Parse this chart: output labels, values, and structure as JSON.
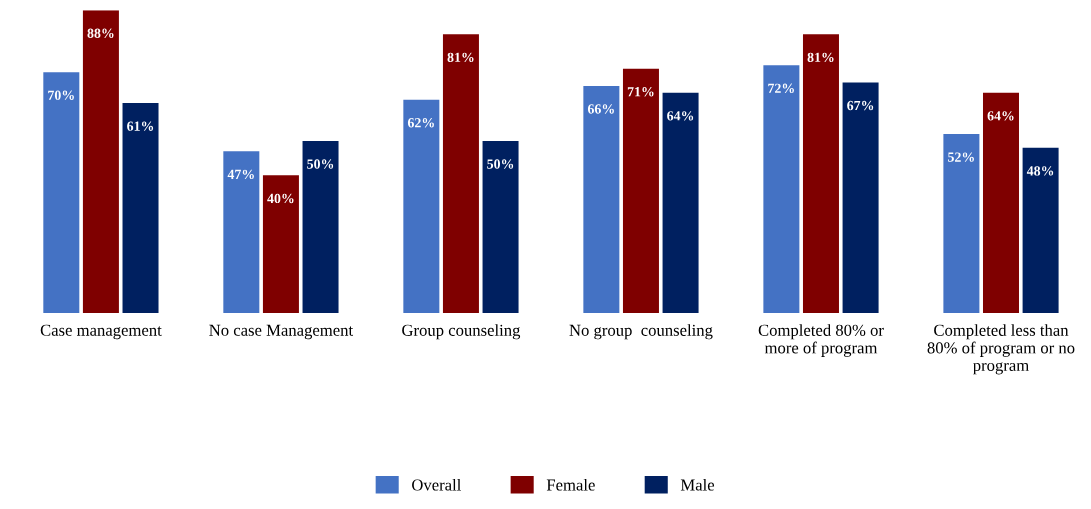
{
  "chart_data": {
    "type": "bar",
    "categories": [
      "Case management",
      "No case Management",
      "Group counseling",
      "No group  counseling",
      "Completed 80% or\nmore of program",
      "Completed less than\n80% of program or no\nprogram"
    ],
    "series": [
      {
        "name": "Overall",
        "color": "#4472c4",
        "values": [
          70,
          47,
          62,
          66,
          72,
          52
        ],
        "value_labels": [
          "70%",
          "47%",
          "62%",
          "66%",
          "72%",
          "52%"
        ]
      },
      {
        "name": "Female",
        "color": "#7f0000",
        "values": [
          88,
          40,
          81,
          71,
          81,
          64
        ],
        "value_labels": [
          "88%",
          "40%",
          "81%",
          "71%",
          "81%",
          "64%"
        ]
      },
      {
        "name": "Male",
        "color": "#002060",
        "values": [
          61,
          50,
          50,
          64,
          67,
          48
        ],
        "value_labels": [
          "61%",
          "50%",
          "50%",
          "64%",
          "67%",
          "48%"
        ]
      }
    ],
    "legend": "bottom",
    "grid": false
  }
}
